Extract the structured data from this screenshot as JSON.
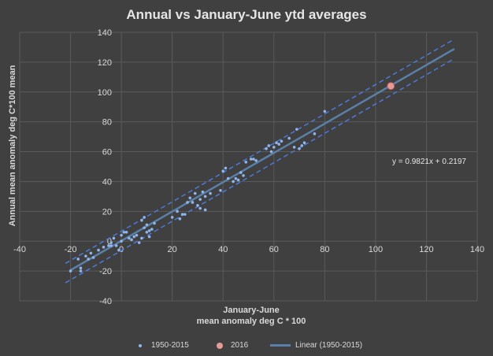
{
  "chart_data": {
    "type": "scatter",
    "title": "Annual vs  January-June ytd averages",
    "xlabel": [
      "January-June",
      "mean anomaly deg C * 100"
    ],
    "ylabel": "Annual mean  anomaly deg C*100 mean",
    "xlim": [
      -40,
      140
    ],
    "ylim": [
      -40,
      140
    ],
    "xticks": [
      "-40",
      "-20",
      "0",
      "20",
      "40",
      "60",
      "80",
      "100",
      "120",
      "140"
    ],
    "yticks": [
      "-40",
      "-20",
      "0",
      "20",
      "40",
      "60",
      "80",
      "100",
      "120",
      "140"
    ],
    "grid": true,
    "trendline": {
      "label": "Linear (1950-2015)",
      "slope": 0.9821,
      "intercept": 0.2197,
      "x_range": [
        -20,
        131
      ],
      "band_offset": 6.5,
      "equation_text": "y = 0.9821x + 0.2197"
    },
    "series": [
      {
        "name": "1950-2015",
        "color": "#8fb5ea",
        "points": [
          [
            -20,
            -20
          ],
          [
            -17,
            -12
          ],
          [
            -16,
            -18
          ],
          [
            -16,
            -20
          ],
          [
            -14,
            -10
          ],
          [
            -13,
            -12
          ],
          [
            -12,
            -8
          ],
          [
            -11,
            -11
          ],
          [
            -9,
            -6
          ],
          [
            -7,
            -4
          ],
          [
            -5,
            -3
          ],
          [
            -4,
            -1
          ],
          [
            -4,
            -3
          ],
          [
            -3,
            2
          ],
          [
            -2,
            -3
          ],
          [
            -1,
            -6
          ],
          [
            0,
            0
          ],
          [
            0,
            4
          ],
          [
            1,
            6
          ],
          [
            2,
            6
          ],
          [
            3,
            2
          ],
          [
            4,
            1
          ],
          [
            5,
            3
          ],
          [
            6,
            4
          ],
          [
            7,
            -1
          ],
          [
            8,
            2
          ],
          [
            8,
            14
          ],
          [
            9,
            16
          ],
          [
            9,
            9
          ],
          [
            10,
            11
          ],
          [
            10,
            6
          ],
          [
            11,
            3
          ],
          [
            11,
            7
          ],
          [
            12,
            8
          ],
          [
            13,
            12
          ],
          [
            20,
            16
          ],
          [
            22,
            20
          ],
          [
            23,
            15
          ],
          [
            24,
            18
          ],
          [
            25,
            18
          ],
          [
            26,
            26
          ],
          [
            27,
            29
          ],
          [
            28,
            26
          ],
          [
            29,
            32
          ],
          [
            30,
            24
          ],
          [
            31,
            28
          ],
          [
            31,
            22
          ],
          [
            32,
            33
          ],
          [
            33,
            30
          ],
          [
            33,
            21
          ],
          [
            35,
            32
          ],
          [
            39,
            34
          ],
          [
            40,
            47
          ],
          [
            41,
            49
          ],
          [
            42,
            42
          ],
          [
            44,
            40
          ],
          [
            45,
            42
          ],
          [
            46,
            41
          ],
          [
            47,
            46
          ],
          [
            48,
            44
          ],
          [
            49,
            53
          ],
          [
            51,
            55
          ],
          [
            52,
            55
          ],
          [
            53,
            54
          ],
          [
            57,
            62
          ],
          [
            58,
            64
          ],
          [
            59,
            60
          ],
          [
            60,
            63
          ],
          [
            61,
            66
          ],
          [
            62,
            65
          ],
          [
            63,
            67
          ],
          [
            66,
            69
          ],
          [
            68,
            63
          ],
          [
            69,
            75
          ],
          [
            70,
            62
          ],
          [
            71,
            64
          ],
          [
            72,
            66
          ],
          [
            76,
            72
          ],
          [
            80,
            87
          ]
        ]
      },
      {
        "name": "2016",
        "color": "#e89a96",
        "points": [
          [
            106,
            104
          ]
        ]
      }
    ],
    "legend": [
      "1950-2015",
      "2016",
      "Linear (1950-2015)"
    ]
  }
}
